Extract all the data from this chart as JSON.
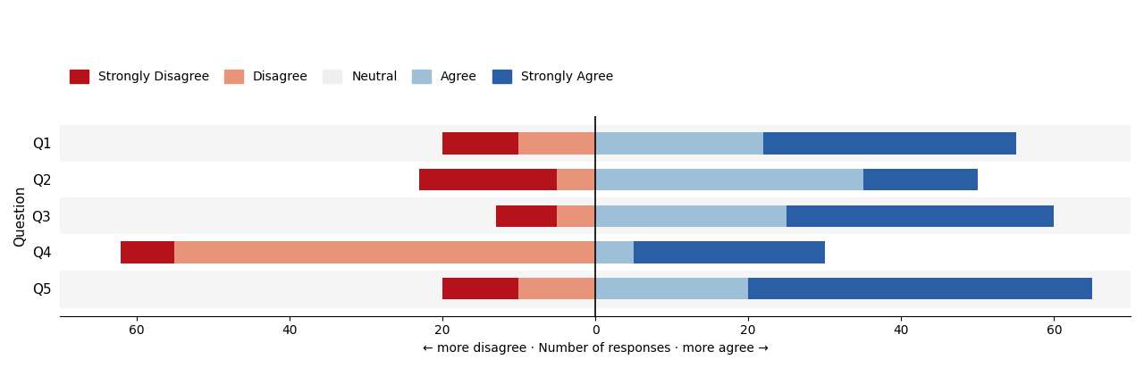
{
  "questions": [
    "Q1",
    "Q2",
    "Q3",
    "Q4",
    "Q5"
  ],
  "strongly_disagree": [
    10,
    18,
    8,
    7,
    10
  ],
  "disagree": [
    10,
    5,
    5,
    55,
    10
  ],
  "agree": [
    22,
    35,
    25,
    5,
    20
  ],
  "strongly_agree": [
    33,
    15,
    35,
    25,
    45
  ],
  "colors": {
    "strongly_disagree": "#b5121b",
    "disagree": "#e8947a",
    "neutral": "#efefef",
    "agree": "#9dbfd8",
    "strongly_agree": "#2a5fa5"
  },
  "xlim": [
    -70,
    70
  ],
  "xticks": [
    -60,
    -40,
    -20,
    0,
    20,
    40,
    60
  ],
  "xticklabels": [
    "60",
    "40",
    "20",
    "0",
    "20",
    "40",
    "60"
  ],
  "xlabel": "← more disagree · Number of responses · more agree →",
  "ylabel": "Question",
  "legend_labels": [
    "Strongly Disagree",
    "Disagree",
    "Neutral",
    "Agree",
    "Strongly Agree"
  ],
  "bar_height": 0.6,
  "row_bg_even": "#f5f5f5",
  "row_bg_odd": "#ffffff",
  "neutral_bg": "#efefef"
}
